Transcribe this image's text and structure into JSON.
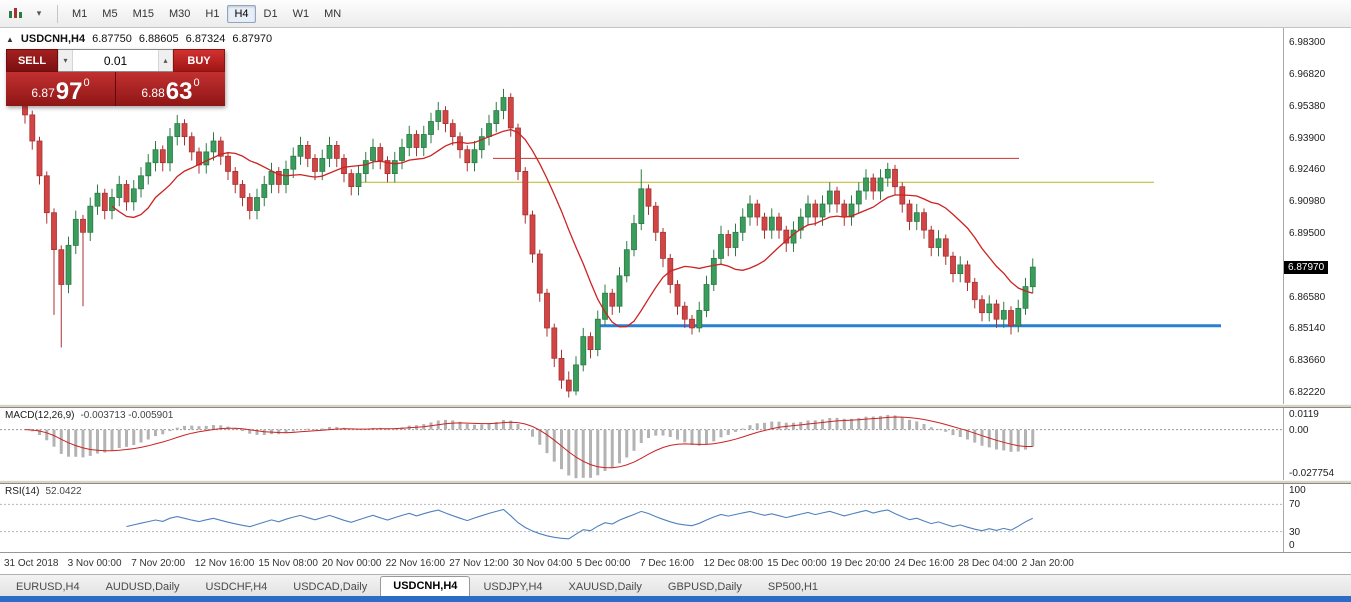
{
  "toolbar": {
    "timeframes": [
      {
        "label": "M1",
        "active": false
      },
      {
        "label": "M5",
        "active": false
      },
      {
        "label": "M15",
        "active": false
      },
      {
        "label": "M30",
        "active": false
      },
      {
        "label": "H1",
        "active": false
      },
      {
        "label": "H4",
        "active": true
      },
      {
        "label": "D1",
        "active": false
      },
      {
        "label": "W1",
        "active": false
      },
      {
        "label": "MN",
        "active": false
      }
    ]
  },
  "chart": {
    "header": {
      "symbol": "USDCNH,H4",
      "open": "6.87750",
      "high": "6.88605",
      "low": "6.87324",
      "close": "6.87970"
    },
    "price_badge": "6.87970",
    "one_click": {
      "sell_label": "SELL",
      "buy_label": "BUY",
      "volume": "0.01",
      "sell_price": {
        "prefix": "6.87",
        "big": "97",
        "sup": "0"
      },
      "buy_price": {
        "prefix": "6.88",
        "big": "63",
        "sup": "0"
      }
    }
  },
  "colors": {
    "bull": "#3a9d5c",
    "bull_stroke": "#2c7a46",
    "bear": "#d24545",
    "bear_stroke": "#a83232",
    "ma": "#cc2222",
    "macd_hist": "#b3b3b3",
    "macd_signal": "#cc2222",
    "rsi": "#4f81bd",
    "badge_bg": "#000000",
    "badge_text": "#ffffff"
  },
  "chart_data": [
    {
      "type": "candlestick",
      "symbol": "USDCNH",
      "timeframe": "H4",
      "ylim": [
        6.817,
        6.99
      ],
      "y_ticks": [
        "6.98300",
        "6.96820",
        "6.95380",
        "6.93900",
        "6.92460",
        "6.90980",
        "6.89500",
        "6.86580",
        "6.85140",
        "6.83660",
        "6.82220"
      ],
      "time_labels": [
        "31 Oct 2018",
        "3 Nov 00:00",
        "7 Nov 20:00",
        "12 Nov 16:00",
        "15 Nov 08:00",
        "20 Nov 00:00",
        "22 Nov 16:00",
        "27 Nov 12:00",
        "30 Nov 04:00",
        "5 Dec 00:00",
        "7 Dec 16:00",
        "12 Dec 08:00",
        "15 Dec 00:00",
        "19 Dec 20:00",
        "24 Dec 16:00",
        "28 Dec 04:00",
        "2 Jan 20:00"
      ],
      "ma": {
        "period": 13,
        "color": "#cc2222"
      },
      "hlines": [
        {
          "name": "resistance-line-red",
          "price": 6.93,
          "color": "#cc3333",
          "x1": 0.385,
          "x2": 0.795,
          "width": 1
        },
        {
          "name": "resistance-line-olive",
          "price": 6.919,
          "color": "#b8b820",
          "x1": 0.28,
          "x2": 0.9,
          "width": 1
        },
        {
          "name": "support-line-blue",
          "price": 6.853,
          "color": "#2a7fd4",
          "x1": 0.465,
          "x2": 0.952,
          "width": 3
        }
      ],
      "candles": [
        [
          6.956,
          6.958,
          6.946,
          6.95
        ],
        [
          6.95,
          6.952,
          6.934,
          6.938
        ],
        [
          6.938,
          6.94,
          6.918,
          6.922
        ],
        [
          6.922,
          6.924,
          6.9,
          6.905
        ],
        [
          6.905,
          6.907,
          6.858,
          6.888
        ],
        [
          6.888,
          6.89,
          6.843,
          6.872
        ],
        [
          6.872,
          6.894,
          6.868,
          6.89
        ],
        [
          6.89,
          6.906,
          6.886,
          6.902
        ],
        [
          6.902,
          6.904,
          6.862,
          6.896
        ],
        [
          6.896,
          6.912,
          6.892,
          6.908
        ],
        [
          6.908,
          6.918,
          6.904,
          6.914
        ],
        [
          6.914,
          6.916,
          6.902,
          6.906
        ],
        [
          6.906,
          6.916,
          6.902,
          6.912
        ],
        [
          6.912,
          6.922,
          6.908,
          6.918
        ],
        [
          6.918,
          6.92,
          6.906,
          6.91
        ],
        [
          6.91,
          6.92,
          6.906,
          6.916
        ],
        [
          6.916,
          6.926,
          6.912,
          6.922
        ],
        [
          6.922,
          6.932,
          6.918,
          6.928
        ],
        [
          6.928,
          6.938,
          6.924,
          6.934
        ],
        [
          6.934,
          6.936,
          6.924,
          6.928
        ],
        [
          6.928,
          6.944,
          6.924,
          6.94
        ],
        [
          6.94,
          6.95,
          6.936,
          6.946
        ],
        [
          6.946,
          6.948,
          6.936,
          6.94
        ],
        [
          6.94,
          6.942,
          6.929,
          6.933
        ],
        [
          6.933,
          6.935,
          6.923,
          6.927
        ],
        [
          6.927,
          6.937,
          6.923,
          6.933
        ],
        [
          6.933,
          6.942,
          6.929,
          6.938
        ],
        [
          6.938,
          6.94,
          6.927,
          6.931
        ],
        [
          6.931,
          6.933,
          6.92,
          6.924
        ],
        [
          6.924,
          6.926,
          6.914,
          6.918
        ],
        [
          6.918,
          6.92,
          6.908,
          6.912
        ],
        [
          6.912,
          6.914,
          6.902,
          6.906
        ],
        [
          6.906,
          6.916,
          6.902,
          6.912
        ],
        [
          6.912,
          6.922,
          6.908,
          6.918
        ],
        [
          6.918,
          6.928,
          6.914,
          6.924
        ],
        [
          6.924,
          6.926,
          6.914,
          6.918
        ],
        [
          6.918,
          6.929,
          6.914,
          6.925
        ],
        [
          6.925,
          6.935,
          6.921,
          6.931
        ],
        [
          6.931,
          6.94,
          6.927,
          6.936
        ],
        [
          6.936,
          6.938,
          6.926,
          6.93
        ],
        [
          6.93,
          6.932,
          6.92,
          6.924
        ],
        [
          6.924,
          6.934,
          6.92,
          6.93
        ],
        [
          6.93,
          6.94,
          6.926,
          6.936
        ],
        [
          6.936,
          6.938,
          6.926,
          6.93
        ],
        [
          6.93,
          6.932,
          6.919,
          6.923
        ],
        [
          6.923,
          6.925,
          6.913,
          6.917
        ],
        [
          6.917,
          6.927,
          6.913,
          6.923
        ],
        [
          6.923,
          6.933,
          6.919,
          6.929
        ],
        [
          6.929,
          6.939,
          6.925,
          6.935
        ],
        [
          6.935,
          6.937,
          6.925,
          6.929
        ],
        [
          6.929,
          6.931,
          6.919,
          6.923
        ],
        [
          6.923,
          6.933,
          6.919,
          6.929
        ],
        [
          6.929,
          6.939,
          6.925,
          6.935
        ],
        [
          6.935,
          6.945,
          6.931,
          6.941
        ],
        [
          6.941,
          6.943,
          6.931,
          6.935
        ],
        [
          6.935,
          6.945,
          6.931,
          6.941
        ],
        [
          6.941,
          6.951,
          6.937,
          6.947
        ],
        [
          6.947,
          6.956,
          6.943,
          6.952
        ],
        [
          6.952,
          6.954,
          6.942,
          6.946
        ],
        [
          6.946,
          6.948,
          6.936,
          6.94
        ],
        [
          6.94,
          6.942,
          6.93,
          6.934
        ],
        [
          6.934,
          6.936,
          6.924,
          6.928
        ],
        [
          6.928,
          6.938,
          6.924,
          6.934
        ],
        [
          6.934,
          6.944,
          6.93,
          6.94
        ],
        [
          6.94,
          6.95,
          6.936,
          6.946
        ],
        [
          6.946,
          6.956,
          6.942,
          6.952
        ],
        [
          6.952,
          6.962,
          6.948,
          6.958
        ],
        [
          6.958,
          6.96,
          6.94,
          6.944
        ],
        [
          6.944,
          6.946,
          6.92,
          6.924
        ],
        [
          6.924,
          6.926,
          6.9,
          6.904
        ],
        [
          6.904,
          6.906,
          6.882,
          6.886
        ],
        [
          6.886,
          6.888,
          6.864,
          6.868
        ],
        [
          6.868,
          6.87,
          6.848,
          6.852
        ],
        [
          6.852,
          6.854,
          6.834,
          6.838
        ],
        [
          6.838,
          6.842,
          6.824,
          6.828
        ],
        [
          6.828,
          6.832,
          6.82,
          6.823
        ],
        [
          6.823,
          6.839,
          6.821,
          6.835
        ],
        [
          6.835,
          6.852,
          6.832,
          6.848
        ],
        [
          6.848,
          6.85,
          6.838,
          6.842
        ],
        [
          6.842,
          6.86,
          6.839,
          6.856
        ],
        [
          6.856,
          6.872,
          6.853,
          6.868
        ],
        [
          6.868,
          6.87,
          6.858,
          6.862
        ],
        [
          6.862,
          6.88,
          6.859,
          6.876
        ],
        [
          6.876,
          6.892,
          6.873,
          6.888
        ],
        [
          6.888,
          6.904,
          6.885,
          6.9
        ],
        [
          6.9,
          6.925,
          6.897,
          6.916
        ],
        [
          6.916,
          6.918,
          6.904,
          6.908
        ],
        [
          6.908,
          6.91,
          6.892,
          6.896
        ],
        [
          6.896,
          6.898,
          6.88,
          6.884
        ],
        [
          6.884,
          6.886,
          6.868,
          6.872
        ],
        [
          6.872,
          6.874,
          6.858,
          6.862
        ],
        [
          6.862,
          6.864,
          6.852,
          6.856
        ],
        [
          6.856,
          6.858,
          6.849,
          6.852
        ],
        [
          6.852,
          6.864,
          6.85,
          6.86
        ],
        [
          6.86,
          6.876,
          6.857,
          6.872
        ],
        [
          6.872,
          6.888,
          6.869,
          6.884
        ],
        [
          6.884,
          6.899,
          6.881,
          6.895
        ],
        [
          6.895,
          6.897,
          6.885,
          6.889
        ],
        [
          6.889,
          6.9,
          6.885,
          6.896
        ],
        [
          6.896,
          6.907,
          6.892,
          6.903
        ],
        [
          6.903,
          6.913,
          6.899,
          6.909
        ],
        [
          6.909,
          6.911,
          6.899,
          6.903
        ],
        [
          6.903,
          6.905,
          6.893,
          6.897
        ],
        [
          6.897,
          6.907,
          6.893,
          6.903
        ],
        [
          6.903,
          6.905,
          6.893,
          6.897
        ],
        [
          6.897,
          6.899,
          6.887,
          6.891
        ],
        [
          6.891,
          6.901,
          6.887,
          6.897
        ],
        [
          6.897,
          6.907,
          6.893,
          6.903
        ],
        [
          6.903,
          6.913,
          6.899,
          6.909
        ],
        [
          6.909,
          6.911,
          6.899,
          6.903
        ],
        [
          6.903,
          6.913,
          6.899,
          6.909
        ],
        [
          6.909,
          6.919,
          6.905,
          6.915
        ],
        [
          6.915,
          6.917,
          6.905,
          6.909
        ],
        [
          6.909,
          6.911,
          6.899,
          6.903
        ],
        [
          6.903,
          6.913,
          6.899,
          6.909
        ],
        [
          6.909,
          6.919,
          6.905,
          6.915
        ],
        [
          6.915,
          6.925,
          6.911,
          6.921
        ],
        [
          6.921,
          6.923,
          6.911,
          6.915
        ],
        [
          6.915,
          6.925,
          6.911,
          6.921
        ],
        [
          6.921,
          6.928,
          6.917,
          6.925
        ],
        [
          6.925,
          6.927,
          6.913,
          6.917
        ],
        [
          6.917,
          6.919,
          6.905,
          6.909
        ],
        [
          6.909,
          6.911,
          6.897,
          6.901
        ],
        [
          6.901,
          6.909,
          6.897,
          6.905
        ],
        [
          6.905,
          6.907,
          6.893,
          6.897
        ],
        [
          6.897,
          6.899,
          6.885,
          6.889
        ],
        [
          6.889,
          6.897,
          6.885,
          6.893
        ],
        [
          6.893,
          6.895,
          6.881,
          6.885
        ],
        [
          6.885,
          6.887,
          6.873,
          6.877
        ],
        [
          6.877,
          6.885,
          6.873,
          6.881
        ],
        [
          6.881,
          6.883,
          6.869,
          6.873
        ],
        [
          6.873,
          6.875,
          6.861,
          6.865
        ],
        [
          6.865,
          6.867,
          6.855,
          6.859
        ],
        [
          6.859,
          6.867,
          6.855,
          6.863
        ],
        [
          6.863,
          6.865,
          6.852,
          6.856
        ],
        [
          6.856,
          6.864,
          6.852,
          6.86
        ],
        [
          6.86,
          6.862,
          6.849,
          6.853
        ],
        [
          6.853,
          6.865,
          6.85,
          6.861
        ],
        [
          6.861,
          6.875,
          6.858,
          6.871
        ],
        [
          6.871,
          6.884,
          6.868,
          6.88
        ]
      ]
    },
    {
      "type": "macd",
      "label": "MACD(12,26,9)",
      "values": "-0.003713 -0.005901",
      "params": [
        12,
        26,
        9
      ],
      "ylim": [
        -0.027754,
        0.0119
      ],
      "y_ticks": [
        "0.0119",
        "0.00",
        "-0.027754"
      ]
    },
    {
      "type": "line",
      "label": "RSI(14)",
      "value": "52.0422",
      "period": 14,
      "ylim": [
        0,
        100
      ],
      "levels": [
        70,
        30
      ],
      "y_ticks": [
        "100",
        "70",
        "30",
        "0"
      ]
    }
  ],
  "tabs": [
    {
      "label": "EURUSD,H4",
      "active": false
    },
    {
      "label": "AUDUSD,Daily",
      "active": false
    },
    {
      "label": "USDCHF,H4",
      "active": false
    },
    {
      "label": "USDCAD,Daily",
      "active": false
    },
    {
      "label": "USDCNH,H4",
      "active": true
    },
    {
      "label": "USDJPY,H4",
      "active": false
    },
    {
      "label": "XAUUSD,Daily",
      "active": false
    },
    {
      "label": "GBPUSD,Daily",
      "active": false
    },
    {
      "label": "SP500,H1",
      "active": false
    }
  ]
}
